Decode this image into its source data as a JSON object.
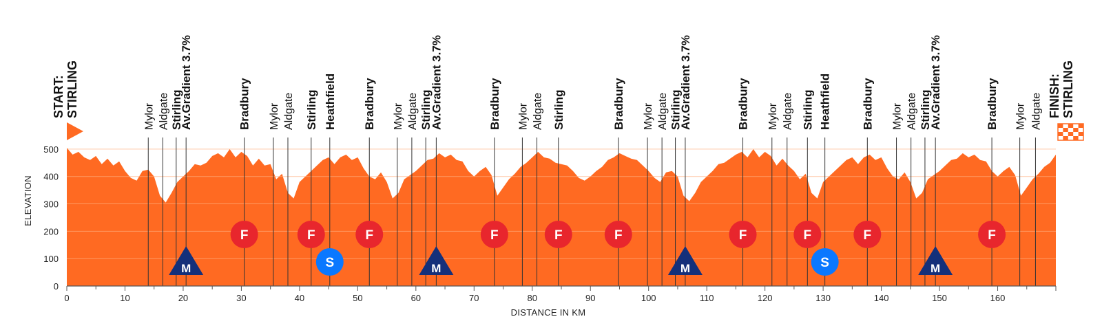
{
  "chart_data": {
    "type": "area",
    "xlabel": "DISTANCE IN KM",
    "ylabel": "ELEVATION",
    "xlim": [
      0,
      170
    ],
    "ylim": [
      0,
      550
    ],
    "x_ticks": [
      0,
      10,
      20,
      30,
      40,
      50,
      60,
      70,
      80,
      90,
      100,
      110,
      120,
      130,
      140,
      150,
      160
    ],
    "y_ticks": [
      0,
      100,
      200,
      300,
      400,
      500
    ],
    "grid": true,
    "colors": {
      "area": "#ff6a22",
      "grid": "#ffb080",
      "start_flag": "#ff6a22",
      "sprint": "#e8262d",
      "kom": "#14307a",
      "intermediate": "#0a78ff"
    },
    "profile": {
      "x": [
        0,
        1,
        2,
        3,
        4,
        5,
        6,
        7,
        8,
        9,
        10,
        11,
        12,
        13,
        14,
        15,
        16,
        17,
        18,
        19,
        20,
        21,
        22,
        23,
        24,
        25,
        26,
        27,
        28,
        29,
        30,
        31,
        32,
        33,
        34,
        35,
        36,
        37,
        38,
        39,
        40,
        41,
        42,
        43,
        44,
        45,
        46,
        47,
        48,
        49,
        50,
        51,
        52,
        53,
        54,
        55,
        56,
        57,
        58,
        59,
        60,
        61,
        62,
        63,
        64,
        65,
        66,
        67,
        68,
        69,
        70,
        71,
        72,
        73,
        74,
        75,
        76,
        77,
        78,
        79,
        80,
        81,
        82,
        83,
        84,
        85,
        86,
        87,
        88,
        89,
        90,
        91,
        92,
        93,
        94,
        95,
        96,
        97,
        98,
        99,
        100,
        101,
        102,
        103,
        104,
        105,
        106,
        107,
        108,
        109,
        110,
        111,
        112,
        113,
        114,
        115,
        116,
        117,
        118,
        119,
        120,
        121,
        122,
        123,
        124,
        125,
        126,
        127,
        128,
        129,
        130,
        131,
        132,
        133,
        134,
        135,
        136,
        137,
        138,
        139,
        140,
        141,
        142,
        143,
        144,
        145,
        146,
        147,
        148,
        149,
        150,
        151,
        152,
        153,
        154,
        155,
        156,
        157,
        158,
        159,
        160,
        161,
        162,
        163,
        164,
        165,
        166,
        167,
        168,
        169,
        170
      ],
      "elevation": [
        505,
        480,
        490,
        470,
        460,
        475,
        445,
        465,
        440,
        455,
        420,
        395,
        385,
        420,
        425,
        400,
        330,
        305,
        340,
        380,
        400,
        420,
        445,
        440,
        450,
        475,
        485,
        470,
        500,
        470,
        490,
        475,
        440,
        465,
        440,
        445,
        390,
        410,
        340,
        320,
        380,
        400,
        420,
        440,
        460,
        470,
        445,
        470,
        480,
        460,
        470,
        430,
        400,
        390,
        415,
        380,
        320,
        340,
        390,
        405,
        420,
        440,
        460,
        465,
        485,
        470,
        480,
        460,
        455,
        420,
        400,
        420,
        435,
        405,
        330,
        360,
        390,
        410,
        435,
        450,
        470,
        490,
        470,
        465,
        450,
        445,
        440,
        420,
        395,
        385,
        400,
        420,
        435,
        460,
        470,
        485,
        475,
        465,
        460,
        440,
        420,
        395,
        380,
        415,
        420,
        400,
        330,
        310,
        340,
        380,
        400,
        420,
        445,
        450,
        465,
        480,
        490,
        470,
        500,
        470,
        490,
        475,
        440,
        465,
        440,
        420,
        390,
        410,
        340,
        320,
        380,
        400,
        420,
        440,
        460,
        470,
        445,
        470,
        480,
        460,
        470,
        430,
        400,
        390,
        415,
        380,
        320,
        340,
        390,
        405,
        420,
        440,
        460,
        465,
        485,
        470,
        480,
        460,
        455,
        420,
        400,
        420,
        435,
        405,
        330,
        360,
        390,
        410,
        435,
        450,
        480
      ]
    },
    "waypoints": [
      {
        "km": 14,
        "label": "Mylor",
        "bold": false
      },
      {
        "km": 16.5,
        "label": "Aldgate",
        "bold": false
      },
      {
        "km": 18.8,
        "label": "Stirling",
        "bold": true
      },
      {
        "km": 20.5,
        "label": "Av.Gradient 3.7%",
        "bold": true
      },
      {
        "km": 30.5,
        "label": "Bradbury",
        "bold": true
      },
      {
        "km": 35.5,
        "label": "Mylor",
        "bold": false
      },
      {
        "km": 38,
        "label": "Aldgate",
        "bold": false
      },
      {
        "km": 42,
        "label": "Stirling",
        "bold": true
      },
      {
        "km": 45.2,
        "label": "Heathfield",
        "bold": true
      },
      {
        "km": 52,
        "label": "Bradbury",
        "bold": true
      },
      {
        "km": 56.8,
        "label": "Mylor",
        "bold": false
      },
      {
        "km": 59.3,
        "label": "Aldgate",
        "bold": false
      },
      {
        "km": 61.7,
        "label": "Stirling",
        "bold": true
      },
      {
        "km": 63.5,
        "label": "Av.Gradient 3.7%",
        "bold": true
      },
      {
        "km": 73.5,
        "label": "Bradbury",
        "bold": true
      },
      {
        "km": 78.3,
        "label": "Mylor",
        "bold": false
      },
      {
        "km": 80.8,
        "label": "Aldgate",
        "bold": false
      },
      {
        "km": 84.5,
        "label": "Stirling",
        "bold": true
      },
      {
        "km": 94.8,
        "label": "Bradbury",
        "bold": true
      },
      {
        "km": 99.8,
        "label": "Mylor",
        "bold": false
      },
      {
        "km": 102.3,
        "label": "Aldgate",
        "bold": false
      },
      {
        "km": 104.6,
        "label": "Stirling",
        "bold": true
      },
      {
        "km": 106.3,
        "label": "Av.Gradient 3.7%",
        "bold": true
      },
      {
        "km": 116.2,
        "label": "Bradbury",
        "bold": true
      },
      {
        "km": 121.2,
        "label": "Mylor",
        "bold": false
      },
      {
        "km": 123.8,
        "label": "Aldgate",
        "bold": false
      },
      {
        "km": 127.3,
        "label": "Stirling",
        "bold": true
      },
      {
        "km": 130.3,
        "label": "Heathfield",
        "bold": true
      },
      {
        "km": 137.6,
        "label": "Bradbury",
        "bold": true
      },
      {
        "km": 142.6,
        "label": "Mylor",
        "bold": false
      },
      {
        "km": 145.1,
        "label": "Aldgate",
        "bold": false
      },
      {
        "km": 147.5,
        "label": "Stirling",
        "bold": true
      },
      {
        "km": 149.3,
        "label": "Av.Gradient 3.7%",
        "bold": true
      },
      {
        "km": 159,
        "label": "Bradbury",
        "bold": true
      },
      {
        "km": 163.8,
        "label": "Mylor",
        "bold": false
      },
      {
        "km": 166.5,
        "label": "Aldgate",
        "bold": false
      }
    ],
    "start": {
      "km": 0,
      "label_line1": "START:",
      "label_line2": "STIRLING"
    },
    "finish": {
      "km": 170,
      "label_line1": "FINISH:",
      "label_line2": "STIRLING"
    },
    "markers": [
      {
        "km": 20.5,
        "type": "kom",
        "label": "M"
      },
      {
        "km": 30.5,
        "type": "sprint",
        "label": "F"
      },
      {
        "km": 42,
        "type": "sprint",
        "label": "F"
      },
      {
        "km": 45.2,
        "type": "intermediate",
        "label": "S"
      },
      {
        "km": 52,
        "type": "sprint",
        "label": "F"
      },
      {
        "km": 63.5,
        "type": "kom",
        "label": "M"
      },
      {
        "km": 73.5,
        "type": "sprint",
        "label": "F"
      },
      {
        "km": 84.5,
        "type": "sprint",
        "label": "F"
      },
      {
        "km": 94.8,
        "type": "sprint",
        "label": "F"
      },
      {
        "km": 106.3,
        "type": "kom",
        "label": "M"
      },
      {
        "km": 116.2,
        "type": "sprint",
        "label": "F"
      },
      {
        "km": 127.3,
        "type": "sprint",
        "label": "F"
      },
      {
        "km": 130.3,
        "type": "intermediate",
        "label": "S"
      },
      {
        "km": 137.6,
        "type": "sprint",
        "label": "F"
      },
      {
        "km": 149.3,
        "type": "kom",
        "label": "M"
      },
      {
        "km": 159,
        "type": "sprint",
        "label": "F"
      }
    ]
  }
}
